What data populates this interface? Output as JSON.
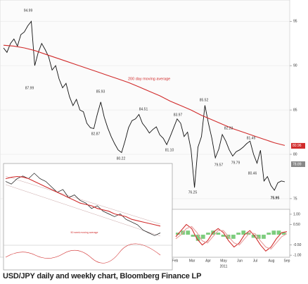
{
  "chart_data": [
    {
      "type": "line",
      "annotation": "200 day moving average",
      "series": [
        {
          "color": "#111111",
          "values": [
            92.0,
            91.5,
            92.5,
            93.0,
            92.2,
            93.5,
            93.8,
            94.5,
            94.99,
            90.0,
            91.5,
            92.5,
            91.8,
            91.0,
            89.5,
            90.0,
            88.5,
            87.5,
            88.0,
            86.5,
            85.5,
            86.2,
            85.0,
            84.8,
            83.5,
            83.0,
            82.9,
            84.5,
            85.9,
            84.2,
            83.0,
            82.0,
            81.2,
            80.5,
            80.2,
            81.5,
            83.0,
            83.8,
            84.0,
            84.5,
            83.5,
            83.0,
            82.4,
            82.8,
            83.1,
            82.2,
            81.8,
            81.1,
            82.0,
            83.0,
            84.0,
            83.5,
            82.0,
            82.5,
            80.5,
            76.25,
            80.8,
            82.0,
            85.52,
            83.5,
            81.8,
            79.6,
            80.6,
            82.23,
            81.5,
            80.5,
            79.8,
            80.3,
            80.5,
            80.8,
            81.2,
            81.49,
            80.0,
            79.0,
            80.46,
            77.0,
            77.5,
            76.5,
            75.95,
            76.8,
            77.0,
            76.9
          ]
        },
        {
          "color": "#d12b2b",
          "values": [
            92.3,
            92.2,
            92.0,
            91.7,
            91.3,
            90.9,
            90.5,
            90.1,
            89.7,
            89.3,
            88.9,
            88.5,
            88.1,
            87.6,
            87.1,
            86.6,
            86.0,
            85.5,
            85.0,
            84.4,
            83.9,
            83.4,
            82.9,
            82.5,
            82.1,
            81.7,
            81.3,
            81.0
          ]
        }
      ],
      "price_labels": [
        "94.99",
        "87.99",
        "85.93",
        "82.87",
        "80.22",
        "84.51",
        "81.10",
        "83.97",
        "76.25",
        "85.52",
        "79.57",
        "82.23",
        "79.79",
        "81.49",
        "80.46",
        "75.95"
      ],
      "tags": [
        80.96,
        78.89
      ],
      "tag_colors": [
        "#d12b2b",
        "#888888"
      ],
      "ylim": [
        74.2,
        97.4
      ],
      "yticks": [
        95,
        90,
        85,
        80,
        75
      ],
      "months": [
        "Feb",
        "Mar",
        "Apr",
        "May",
        "Jun",
        "Jul",
        "Aug",
        "Sep"
      ],
      "year": "2011"
    },
    {
      "type": "line",
      "annotation": "50 week moving average",
      "series": [
        {
          "color": "#111111",
          "values": [
            96,
            95,
            97,
            98,
            97,
            99,
            97,
            96,
            94,
            92,
            93,
            90,
            91,
            89,
            88,
            86,
            87,
            85,
            84,
            83,
            84,
            82,
            81,
            80,
            78,
            77,
            76,
            77
          ]
        },
        {
          "color": "#d12b2b",
          "values": [
            97,
            97.5,
            97.8,
            97.6,
            97,
            96,
            95,
            94,
            93,
            92,
            91,
            90,
            89,
            88,
            87.5,
            87,
            86,
            85.5,
            85,
            84,
            83.5,
            83,
            82,
            81.5,
            81,
            80.5,
            80,
            79.5
          ]
        }
      ],
      "ylim": [
        74,
        100
      ]
    },
    {
      "type": "macd",
      "series": [
        {
          "color": "#d12b2b",
          "values": [
            -0.1,
            0.2,
            0.5,
            0.3,
            -0.2,
            -0.5,
            -0.3,
            0.1,
            0.3,
            0.1,
            -0.3,
            -0.6,
            -0.4,
            0.0,
            0.2,
            -0.1,
            -0.5,
            -0.8,
            -0.6,
            -0.2,
            0.1,
            0.15
          ]
        },
        {
          "color": "#e89a9a",
          "values": [
            -0.2,
            0.0,
            0.3,
            0.4,
            0.1,
            -0.3,
            -0.4,
            -0.1,
            0.2,
            0.2,
            -0.1,
            -0.4,
            -0.5,
            -0.2,
            0.1,
            0.05,
            -0.3,
            -0.6,
            -0.7,
            -0.4,
            -0.1,
            0.05
          ]
        }
      ],
      "bars": {
        "color": "#5cbf5c",
        "values": [
          0.1,
          0.2,
          0.2,
          -0.1,
          -0.3,
          -0.2,
          0.1,
          0.2,
          0.1,
          -0.1,
          -0.2,
          -0.2,
          0.1,
          0.2,
          0.1,
          -0.15,
          -0.2,
          -0.2,
          0.1,
          0.2,
          0.2,
          0.1
        ]
      },
      "ylim": [
        -1.1,
        1.24
      ],
      "yticks": [
        {
          "value": 1,
          "label": "1.00"
        },
        {
          "value": 0.5,
          "label": "0.50"
        },
        {
          "value": -0.5,
          "label": "-0.50"
        },
        {
          "value": -1,
          "label": "-1.00"
        }
      ]
    }
  ],
  "caption": "USD/JPY daily and weekly chart, Bloomberg Finance LP"
}
